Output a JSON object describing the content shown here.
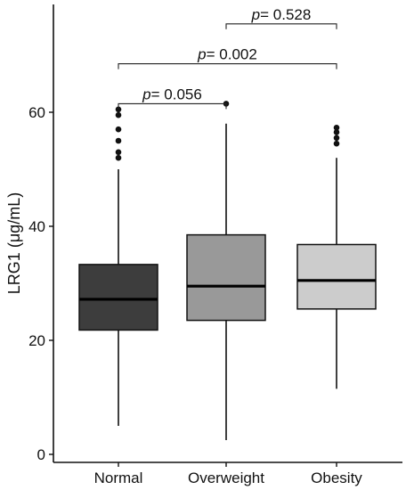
{
  "chart_data": {
    "type": "box",
    "title": "",
    "xlabel": "",
    "ylabel": "LRG1 (μg/mL)",
    "ylim": [
      0,
      72
    ],
    "yticks": [
      0,
      20,
      40,
      60
    ],
    "categories": [
      "Normal",
      "Overweight",
      "Obesity"
    ],
    "boxes": [
      {
        "category": "Normal",
        "min": 5,
        "q1": 21.8,
        "median": 27.2,
        "q3": 33.3,
        "max": 50,
        "outliers": [
          52,
          53,
          55,
          57,
          59.5,
          60.5
        ],
        "fill": "#3d3d3d"
      },
      {
        "category": "Overweight",
        "min": 2.5,
        "q1": 23.5,
        "median": 29.5,
        "q3": 38.5,
        "max": 58,
        "outliers": [
          61.5
        ],
        "fill": "#999999"
      },
      {
        "category": "Obesity",
        "min": 11.5,
        "q1": 25.5,
        "median": 30.5,
        "q3": 36.8,
        "max": 52,
        "outliers": [
          54.5,
          55.5,
          56.5,
          57.3
        ],
        "fill": "#cccccc"
      }
    ],
    "comparisons": [
      {
        "from": "Normal",
        "to": "Overweight",
        "p_prefix": "p",
        "p_value": "= 0.056",
        "y": 61.5
      },
      {
        "from": "Normal",
        "to": "Obesity",
        "p_prefix": "p",
        "p_value": "= 0.002",
        "y": 68.5
      },
      {
        "from": "Overweight",
        "to": "Obesity",
        "p_prefix": "p",
        "p_value": "= 0.528",
        "y": 75.5
      }
    ],
    "grid": false,
    "legend": "none"
  }
}
